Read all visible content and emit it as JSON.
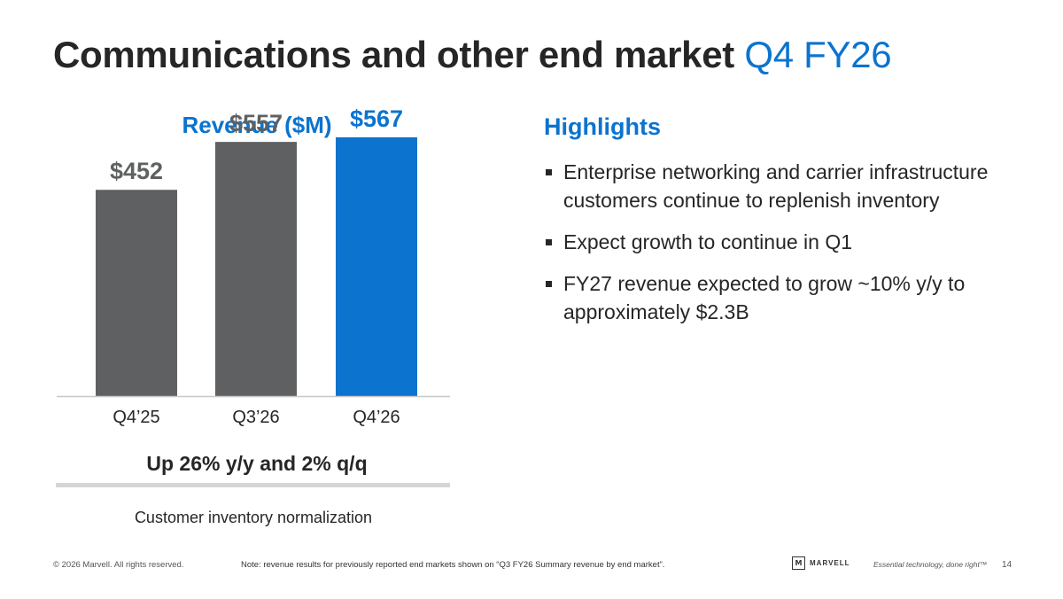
{
  "title": {
    "main": "Communications and other end market",
    "accent": "Q4 FY26"
  },
  "chart_data": {
    "type": "bar",
    "title": "Revenue ($M)",
    "categories": [
      "Q4’25",
      "Q3’26",
      "Q4’26"
    ],
    "values": [
      452,
      557,
      567
    ],
    "value_labels": [
      "$452",
      "$557",
      "$567"
    ],
    "bar_colors": [
      "#5E6062",
      "#5E6062",
      "#0C73CE"
    ],
    "label_colors": [
      "#5E6062",
      "#5E6062",
      "#0C73CE"
    ],
    "ylim": [
      0,
      600
    ],
    "grid": false,
    "xlabel": "",
    "ylabel": ""
  },
  "summary": {
    "growth": "Up 26% y/y and 2% q/q",
    "note": "Customer inventory normalization"
  },
  "highlights": {
    "heading": "Highlights",
    "items": [
      "Enterprise networking and carrier infrastructure customers continue to replenish inventory",
      "Expect growth to continue in Q1",
      "FY27 revenue expected to grow ~10% y/y to approximately $2.3B"
    ]
  },
  "footer": {
    "copyright": "© 2026 Marvell. All rights reserved.",
    "note": "Note: revenue results for previously reported end markets shown on “Q3 FY26 Summary revenue by end market”.",
    "logo_mark": "M",
    "logo_text": "MARVELL",
    "tagline": "Essential technology, done right™",
    "page_number": "14"
  }
}
